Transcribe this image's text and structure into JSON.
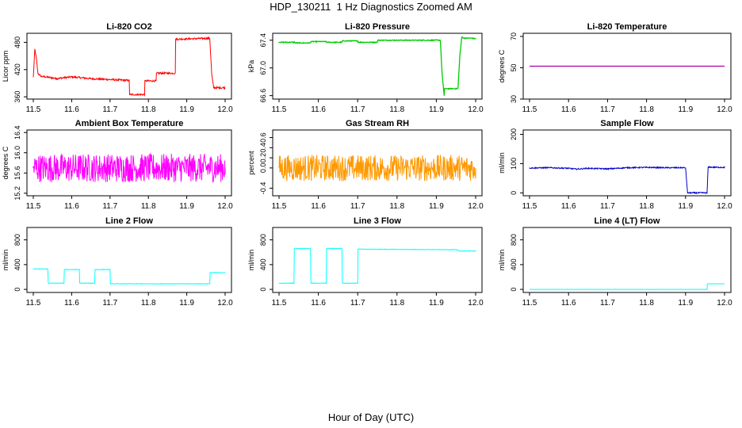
{
  "figure": {
    "title": "HDP_130211  1 Hz Diagnostics Zoomed AM",
    "xlabel": "Hour of Day (UTC)"
  },
  "chart_data": [
    {
      "type": "line",
      "title": "Li-820 CO2",
      "ylabel": "Licor ppm",
      "color": "#ff0000",
      "xlim": [
        11.5,
        12.0
      ],
      "ylim": [
        355,
        500
      ],
      "xticks": [
        "11.5",
        "11.6",
        "11.7",
        "11.8",
        "11.9",
        "12.0"
      ],
      "yticks": [
        360,
        420,
        480
      ],
      "noise": 2,
      "series": [
        {
          "x": [
            11.5,
            11.504,
            11.508,
            11.512,
            11.52,
            11.54,
            11.56,
            11.58,
            11.6,
            11.65,
            11.7,
            11.75,
            11.751,
            11.79,
            11.791,
            11.82,
            11.821,
            11.87,
            11.871,
            11.96,
            11.965,
            11.97,
            12.0
          ],
          "y": [
            403,
            465,
            445,
            412,
            405,
            403,
            400,
            402,
            404,
            400,
            398,
            396,
            365,
            365,
            395,
            395,
            412,
            412,
            487,
            489,
            410,
            380,
            380
          ]
        }
      ]
    },
    {
      "type": "line",
      "title": "Li-820 Pressure",
      "ylabel": "kPa",
      "color": "#00cc00",
      "xlim": [
        11.5,
        12.0
      ],
      "ylim": [
        66.55,
        67.5
      ],
      "xticks": [
        "11.5",
        "11.6",
        "11.7",
        "11.8",
        "11.9",
        "12.0"
      ],
      "yticks": [
        66.6,
        67.0,
        67.4
      ],
      "noise": 0.006,
      "series": [
        {
          "x": [
            11.5,
            11.54,
            11.541,
            11.58,
            11.581,
            11.62,
            11.621,
            11.66,
            11.661,
            11.7,
            11.701,
            11.75,
            11.751,
            11.91,
            11.915,
            11.92,
            11.921,
            11.955,
            11.96,
            11.965,
            11.97,
            11.99,
            12.0
          ],
          "y": [
            67.37,
            67.37,
            67.36,
            67.36,
            67.38,
            67.38,
            67.37,
            67.37,
            67.39,
            67.39,
            67.37,
            67.37,
            67.4,
            67.4,
            66.9,
            66.6,
            66.7,
            66.7,
            67.2,
            67.45,
            67.43,
            67.43,
            67.42
          ]
        }
      ]
    },
    {
      "type": "line",
      "title": "Li-820 Temperature",
      "ylabel": "degrees C",
      "color": "#aa00aa",
      "xlim": [
        11.5,
        12.0
      ],
      "ylim": [
        30,
        72
      ],
      "xticks": [
        "11.5",
        "11.6",
        "11.7",
        "11.8",
        "11.9",
        "12.0"
      ],
      "yticks": [
        30,
        50,
        70
      ],
      "noise": 0,
      "series": [
        {
          "x": [
            11.5,
            12.0
          ],
          "y": [
            51,
            51
          ]
        }
      ]
    },
    {
      "type": "line",
      "title": "Ambient Box Temperature",
      "ylabel": "degrees C",
      "color": "#ff00ff",
      "xlim": [
        11.5,
        12.0
      ],
      "ylim": [
        15.15,
        16.45
      ],
      "xticks": [
        "11.5",
        "11.6",
        "11.7",
        "11.8",
        "11.9",
        "12.0"
      ],
      "yticks": [
        15.2,
        15.6,
        16.0,
        16.4
      ],
      "noise": 0.28,
      "series": [
        {
          "x": [
            11.5,
            12.0
          ],
          "y": [
            15.7,
            15.7
          ]
        }
      ]
    },
    {
      "type": "line",
      "title": "Gas Stream RH",
      "ylabel": "percent",
      "color": "#ff9900",
      "xlim": [
        11.5,
        12.0
      ],
      "ylim": [
        -0.55,
        0.75
      ],
      "xticks": [
        "11.5",
        "11.6",
        "11.7",
        "11.8",
        "11.9",
        "12.0"
      ],
      "yticks": [
        -0.4,
        0.0,
        0.2,
        0.4,
        0.6
      ],
      "noise": 0.26,
      "series": [
        {
          "x": [
            11.5,
            12.0
          ],
          "y": [
            0.0,
            0.0
          ]
        }
      ]
    },
    {
      "type": "line",
      "title": "Sample Flow",
      "ylabel": "ml/min",
      "color": "#0000cc",
      "xlim": [
        11.5,
        12.0
      ],
      "ylim": [
        -10,
        215
      ],
      "xticks": [
        "11.5",
        "11.6",
        "11.7",
        "11.8",
        "11.9",
        "12.0"
      ],
      "yticks": [
        0,
        100,
        200
      ],
      "noise": 2,
      "series": [
        {
          "x": [
            11.5,
            11.55,
            11.6,
            11.62,
            11.65,
            11.7,
            11.75,
            11.8,
            11.85,
            11.9,
            11.905,
            11.955,
            11.958,
            11.99,
            12.0
          ],
          "y": [
            85,
            86,
            84,
            81,
            84,
            82,
            86,
            87,
            86,
            86,
            0,
            0,
            88,
            87,
            87
          ]
        }
      ]
    },
    {
      "type": "line",
      "title": "Line 2 Flow",
      "ylabel": "ml/min",
      "color": "#00ffff",
      "xlim": [
        11.5,
        12.0
      ],
      "ylim": [
        -50,
        1000
      ],
      "xticks": [
        "11.5",
        "11.6",
        "11.7",
        "11.8",
        "11.9",
        "12.0"
      ],
      "yticks": [
        0,
        400,
        800
      ],
      "noise": 4,
      "series": [
        {
          "x": [
            11.5,
            11.538,
            11.539,
            11.58,
            11.581,
            11.62,
            11.621,
            11.66,
            11.661,
            11.7,
            11.701,
            11.96,
            11.961,
            12.0
          ],
          "y": [
            330,
            330,
            100,
            100,
            320,
            320,
            100,
            100,
            320,
            320,
            90,
            90,
            270,
            270
          ]
        }
      ]
    },
    {
      "type": "line",
      "title": "Line 3 Flow",
      "ylabel": "ml/min",
      "color": "#00ffff",
      "xlim": [
        11.5,
        12.0
      ],
      "ylim": [
        -50,
        1000
      ],
      "xticks": [
        "11.5",
        "11.6",
        "11.7",
        "11.8",
        "11.9",
        "12.0"
      ],
      "yticks": [
        0,
        400,
        800
      ],
      "noise": 4,
      "series": [
        {
          "x": [
            11.5,
            11.538,
            11.539,
            11.58,
            11.581,
            11.62,
            11.621,
            11.66,
            11.661,
            11.7,
            11.701,
            11.95,
            11.96,
            12.0
          ],
          "y": [
            100,
            100,
            660,
            660,
            100,
            100,
            660,
            660,
            100,
            100,
            650,
            640,
            620,
            620
          ]
        }
      ]
    },
    {
      "type": "line",
      "title": "Line 4 (LT) Flow",
      "ylabel": "ml/min",
      "color": "#00ffff",
      "xlim": [
        11.5,
        12.0
      ],
      "ylim": [
        -50,
        1000
      ],
      "xticks": [
        "11.5",
        "11.6",
        "11.7",
        "11.8",
        "11.9",
        "12.0"
      ],
      "yticks": [
        0,
        400,
        800
      ],
      "noise": 1,
      "series": [
        {
          "x": [
            11.5,
            11.955,
            11.956,
            12.0
          ],
          "y": [
            0,
            0,
            90,
            90
          ]
        }
      ]
    }
  ]
}
